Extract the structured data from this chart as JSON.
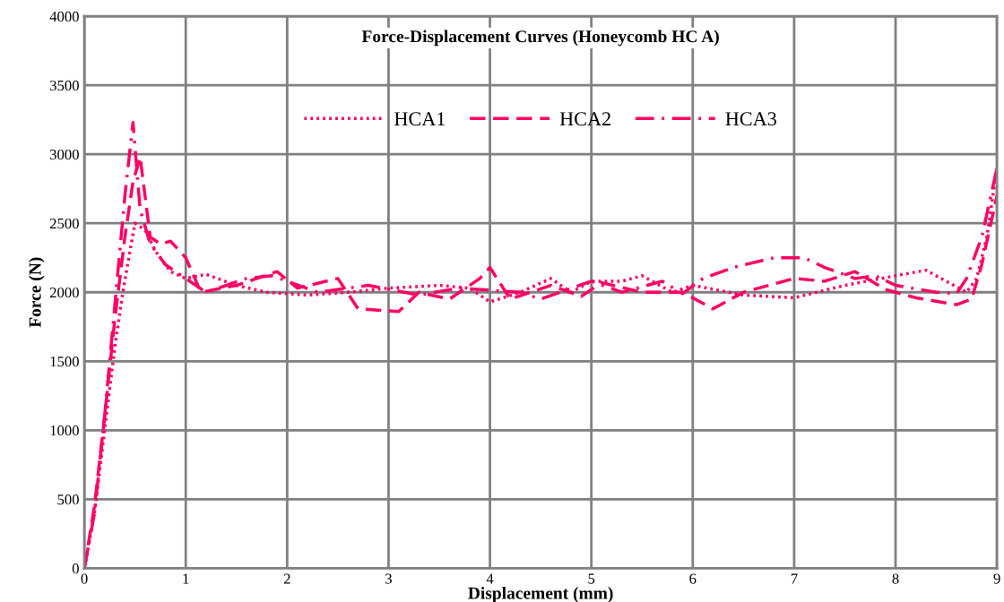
{
  "chart_data": {
    "type": "line",
    "title": "Force-Displacement Curves (Honeycomb HC A)",
    "xlabel": "Displacement (mm)",
    "ylabel": "Force (N)",
    "xlim": [
      0,
      9
    ],
    "ylim": [
      0,
      4000
    ],
    "xticks": [
      0,
      1,
      2,
      3,
      4,
      5,
      6,
      7,
      8,
      9
    ],
    "yticks": [
      0,
      500,
      1000,
      1500,
      2000,
      2500,
      3000,
      3500,
      4000
    ],
    "grid": true,
    "legend": "top",
    "marker": "none",
    "series": [
      {
        "name": "HCA1",
        "color": "#ff0066",
        "line_style": "dotted",
        "x": [
          0,
          0.1,
          0.2,
          0.3,
          0.38,
          0.45,
          0.5,
          0.6,
          0.7,
          0.85,
          1.0,
          1.2,
          1.5,
          1.8,
          2.2,
          2.6,
          3.0,
          3.5,
          3.8,
          4.0,
          4.3,
          4.6,
          4.8,
          5.0,
          5.3,
          5.5,
          5.8,
          6.0,
          6.5,
          7.0,
          7.5,
          8.0,
          8.3,
          8.5,
          8.7,
          8.8,
          8.9,
          9.0
        ],
        "values": [
          0,
          400,
          1000,
          1600,
          2000,
          2300,
          2500,
          2450,
          2300,
          2150,
          2100,
          2130,
          2050,
          2000,
          1980,
          2000,
          2030,
          2050,
          2030,
          1930,
          2000,
          2100,
          2000,
          2080,
          2080,
          2120,
          2000,
          2050,
          1980,
          1960,
          2050,
          2120,
          2160,
          2080,
          2000,
          2100,
          2400,
          2900
        ]
      },
      {
        "name": "HCA2",
        "color": "#ff0066",
        "line_style": "dashed",
        "x": [
          0,
          0.1,
          0.2,
          0.3,
          0.4,
          0.48,
          0.55,
          0.65,
          0.75,
          0.85,
          1.0,
          1.15,
          1.5,
          1.9,
          2.1,
          2.5,
          2.7,
          3.1,
          3.3,
          3.6,
          3.9,
          4.0,
          4.2,
          4.6,
          4.9,
          5.1,
          5.5,
          5.9,
          6.2,
          6.5,
          7.0,
          7.3,
          7.6,
          7.9,
          8.2,
          8.6,
          8.75,
          8.85,
          9.0
        ],
        "values": [
          0,
          450,
          1100,
          1800,
          2400,
          2800,
          2980,
          2400,
          2350,
          2370,
          2250,
          2000,
          2050,
          2150,
          2030,
          2100,
          1880,
          1860,
          2000,
          1950,
          2100,
          2180,
          1950,
          2050,
          1970,
          2070,
          2000,
          2000,
          1880,
          2000,
          2100,
          2080,
          2150,
          2020,
          1960,
          1910,
          1950,
          2200,
          2700
        ]
      },
      {
        "name": "HCA3",
        "color": "#ff0066",
        "line_style": "dashdot",
        "x": [
          0,
          0.1,
          0.2,
          0.3,
          0.4,
          0.48,
          0.55,
          0.65,
          0.8,
          1.0,
          1.2,
          1.6,
          1.85,
          2.3,
          2.8,
          3.3,
          3.7,
          4.3,
          4.5,
          5.0,
          5.3,
          5.7,
          5.9,
          6.1,
          6.4,
          6.8,
          7.1,
          7.3,
          7.6,
          7.8,
          8.0,
          8.4,
          8.6,
          8.7,
          8.85,
          9.0
        ],
        "values": [
          0,
          400,
          1100,
          1900,
          2700,
          3230,
          2600,
          2350,
          2200,
          2100,
          2000,
          2100,
          2120,
          2000,
          2050,
          1980,
          2030,
          2000,
          1950,
          2080,
          2000,
          2080,
          1990,
          2100,
          2180,
          2250,
          2250,
          2180,
          2100,
          2120,
          2050,
          2000,
          1990,
          2100,
          2400,
          2900
        ]
      }
    ]
  }
}
